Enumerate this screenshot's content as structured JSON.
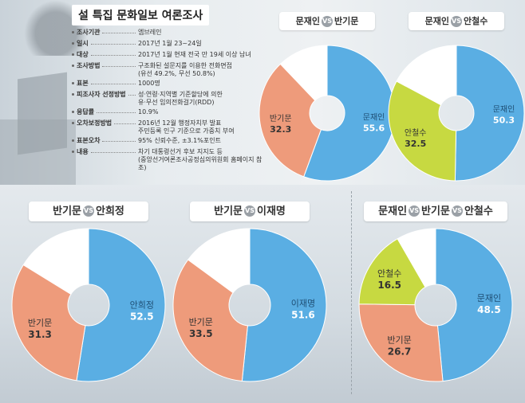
{
  "info": {
    "title": "설 특집 문화일보 여론조사",
    "rows": [
      {
        "label": "조사기관",
        "value": "엠브레인"
      },
      {
        "label": "일시",
        "value": "2017년 1월 23~24일"
      },
      {
        "label": "대상",
        "value": "2017년 1월 현재 전국 만 19세 이상 남녀"
      },
      {
        "label": "조사방법",
        "value": "구조화된 설문지를 이용한 전화면접",
        "value2": "(유선 49.2%, 무선 50.8%)"
      },
      {
        "label": "표본",
        "value": "1000명"
      },
      {
        "label": "피조사자 선정방법",
        "value": "성·연령·지역별 기준할당에 의한",
        "value2": "유·무선 임의전화걸기(RDD)"
      },
      {
        "label": "응답률",
        "value": "10.9%"
      },
      {
        "label": "오차보정방법",
        "value": "2016년 12월 행정자치부 발표",
        "value2": "주민등록 인구 기준으로 가중치 부여"
      },
      {
        "label": "표본오차",
        "value": "95% 신뢰수준, ±3.1%포인트"
      },
      {
        "label": "내용",
        "value": "차기 대통령선거 후보 지지도 등",
        "value2": "(중앙선거여론조사공정심의위원회 홈페이지 참조)"
      }
    ]
  },
  "vs_label": "VS",
  "colors": {
    "blue": "#5aaee3",
    "salmon": "#ee9b7b",
    "lime": "#c7d941",
    "white": "#ffffff"
  },
  "chart_data": [
    {
      "type": "pie",
      "title_parts": [
        "문재인",
        "반기문"
      ],
      "slices": [
        {
          "name": "문재인",
          "value": 55.6,
          "color": "blue"
        },
        {
          "name": "반기문",
          "value": 32.3,
          "color": "salmon"
        },
        {
          "name": "",
          "value": 12.1,
          "color": "white"
        }
      ]
    },
    {
      "type": "pie",
      "title_parts": [
        "문재인",
        "안철수"
      ],
      "slices": [
        {
          "name": "문재인",
          "value": 50.3,
          "color": "blue"
        },
        {
          "name": "안철수",
          "value": 32.5,
          "color": "lime"
        },
        {
          "name": "",
          "value": 17.2,
          "color": "white"
        }
      ]
    },
    {
      "type": "pie",
      "title_parts": [
        "반기문",
        "안희정"
      ],
      "slices": [
        {
          "name": "안희정",
          "value": 52.5,
          "color": "blue"
        },
        {
          "name": "반기문",
          "value": 31.3,
          "color": "salmon"
        },
        {
          "name": "",
          "value": 16.2,
          "color": "white"
        }
      ]
    },
    {
      "type": "pie",
      "title_parts": [
        "반기문",
        "이재명"
      ],
      "slices": [
        {
          "name": "이재명",
          "value": 51.6,
          "color": "blue"
        },
        {
          "name": "반기문",
          "value": 33.5,
          "color": "salmon"
        },
        {
          "name": "",
          "value": 14.9,
          "color": "white"
        }
      ]
    },
    {
      "type": "pie",
      "title_parts": [
        "문재인",
        "반기문",
        "안철수"
      ],
      "slices": [
        {
          "name": "문재인",
          "value": 48.5,
          "color": "blue"
        },
        {
          "name": "반기문",
          "value": 26.7,
          "color": "salmon"
        },
        {
          "name": "안철수",
          "value": 16.5,
          "color": "lime"
        },
        {
          "name": "",
          "value": 8.3,
          "color": "white"
        }
      ]
    }
  ]
}
